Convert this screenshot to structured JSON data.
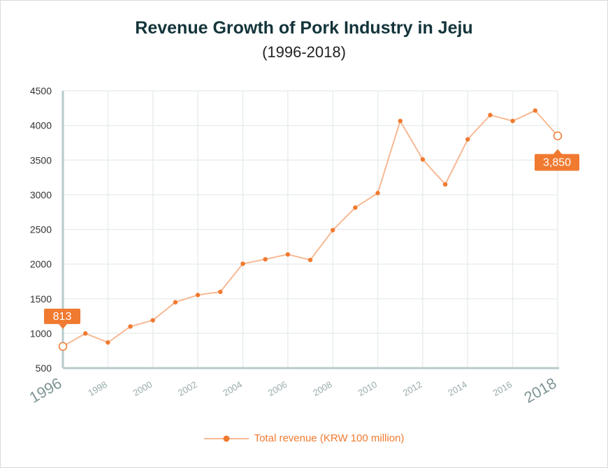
{
  "chart_data": {
    "type": "line",
    "title": "Revenue Growth of Pork Industry in Jeju",
    "subtitle": "(1996-2018)",
    "xlabel": "",
    "ylabel": "",
    "x": [
      1996,
      1997,
      1998,
      1999,
      2000,
      2001,
      2002,
      2003,
      2004,
      2005,
      2006,
      2007,
      2008,
      2009,
      2010,
      2011,
      2012,
      2013,
      2014,
      2015,
      2016,
      2017,
      2018
    ],
    "series": [
      {
        "name": "Total revenue (KRW 100 million)",
        "values": [
          813,
          1000,
          870,
          1100,
          1190,
          1450,
          1555,
          1600,
          2005,
          2070,
          2140,
          2060,
          2490,
          2815,
          3025,
          4065,
          3510,
          3150,
          3800,
          4150,
          4065,
          4215,
          3850
        ]
      }
    ],
    "ylim": [
      500,
      4500
    ],
    "y_ticks": [
      4500,
      4000,
      3500,
      3000,
      2500,
      2000,
      1500,
      1000,
      500
    ],
    "x_tick_labels": [
      "1996",
      "1998",
      "2000",
      "2002",
      "2004",
      "2006",
      "2008",
      "2010",
      "2012",
      "2014",
      "2016",
      "2018"
    ],
    "x_tick_years": [
      1996,
      1998,
      2000,
      2002,
      2004,
      2006,
      2008,
      2010,
      2012,
      2014,
      2016,
      2018
    ],
    "callouts": [
      {
        "year": 1996,
        "label": "813"
      },
      {
        "year": 2018,
        "label": "3,850"
      }
    ],
    "grid": true,
    "legend": "bottom-center",
    "colors": {
      "line": "#f7b994",
      "marker": "#f07a30",
      "callout": "#f07a30",
      "grid": "#e9eeee",
      "axis": "#b7cbcc",
      "tick_text": "#9aabad",
      "y_text": "#333333"
    }
  }
}
